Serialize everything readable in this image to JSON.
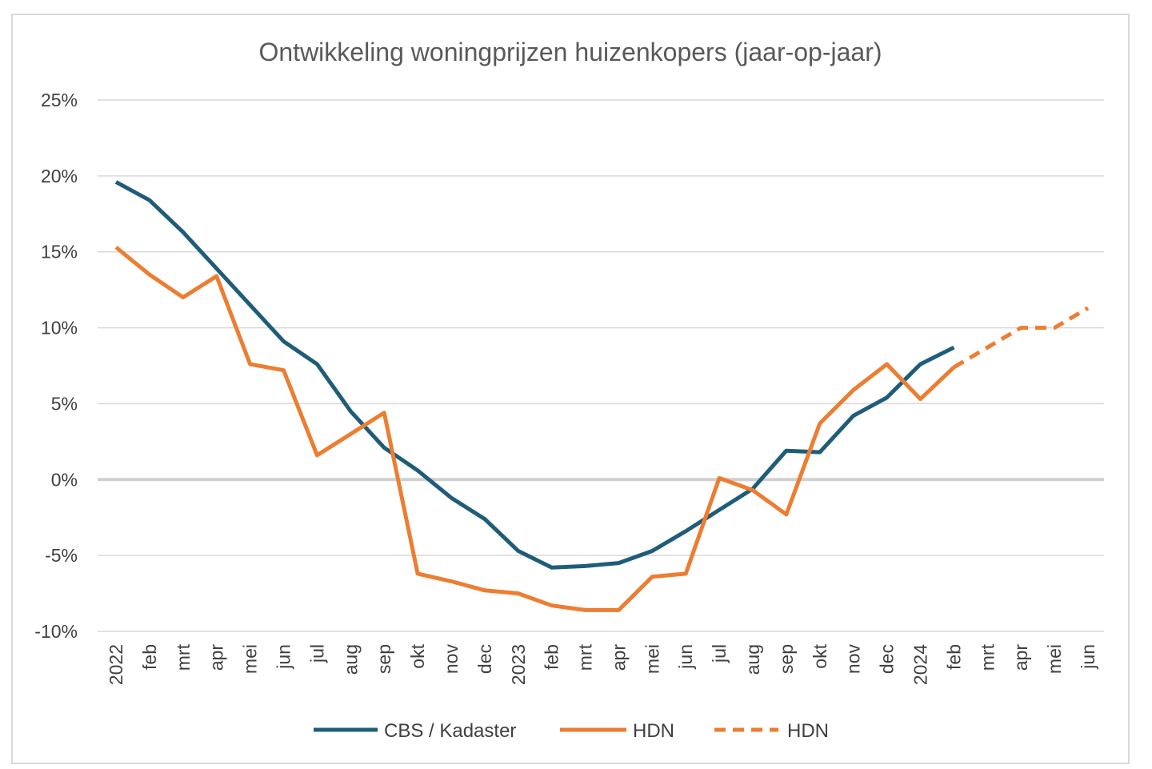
{
  "chart_data": {
    "type": "line",
    "title": "Ontwikkeling woningprijzen huizenkopers (jaar-op-jaar)",
    "xlabel": "",
    "ylabel": "",
    "ylim": [
      -10,
      25
    ],
    "yticks": [
      25,
      20,
      15,
      10,
      5,
      0,
      -5,
      -10
    ],
    "ytick_labels": [
      "25%",
      "20%",
      "15%",
      "10%",
      "5%",
      "0%",
      "-5%",
      "-10%"
    ],
    "categories": [
      "2022",
      "feb",
      "mrt",
      "apr",
      "mei",
      "jun",
      "jul",
      "aug",
      "sep",
      "okt",
      "nov",
      "dec",
      "2023",
      "feb",
      "mrt",
      "apr",
      "mei",
      "jun",
      "jul",
      "aug",
      "sep",
      "okt",
      "nov",
      "dec",
      "2024",
      "feb",
      "mrt",
      "apr",
      "mei",
      "jun"
    ],
    "grid": true,
    "legend_position": "bottom",
    "series": [
      {
        "name": "CBS / Kadaster",
        "color": "#1f5c7a",
        "style": "solid",
        "values": [
          19.6,
          18.4,
          16.3,
          13.9,
          11.5,
          9.1,
          7.6,
          4.5,
          2.1,
          0.6,
          -1.2,
          -2.6,
          -4.7,
          -5.8,
          -5.7,
          -5.5,
          -4.7,
          -3.4,
          -2.0,
          -0.6,
          1.9,
          1.8,
          4.2,
          5.4,
          7.6,
          8.7,
          null,
          null,
          null,
          null
        ]
      },
      {
        "name": "HDN",
        "color": "#ed7d31",
        "style": "solid",
        "values": [
          15.3,
          13.5,
          12.0,
          13.4,
          7.6,
          7.2,
          1.6,
          3.0,
          4.4,
          -6.2,
          -6.7,
          -7.3,
          -7.5,
          -8.3,
          -8.6,
          -8.6,
          -6.4,
          -6.2,
          0.1,
          -0.7,
          -2.3,
          3.7,
          5.9,
          7.6,
          5.3,
          7.4,
          null,
          null,
          null,
          null
        ]
      },
      {
        "name": "HDN",
        "color": "#ed7d31",
        "style": "dashed",
        "values": [
          null,
          null,
          null,
          null,
          null,
          null,
          null,
          null,
          null,
          null,
          null,
          null,
          null,
          null,
          null,
          null,
          null,
          null,
          null,
          null,
          null,
          null,
          null,
          null,
          null,
          7.4,
          8.7,
          10.0,
          10.0,
          11.3
        ]
      }
    ]
  }
}
